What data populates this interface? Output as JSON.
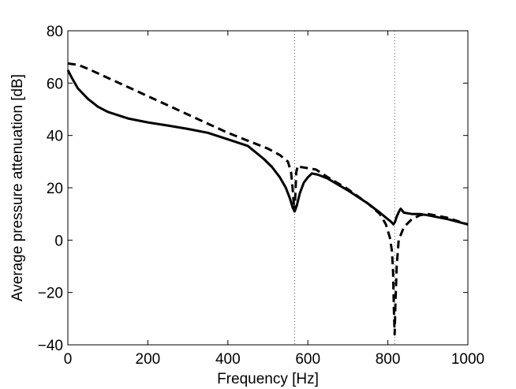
{
  "chart_data": {
    "type": "line",
    "title": "",
    "xlabel": "Frequency [Hz]",
    "ylabel": "Average pressure attenuation [dB]",
    "xlim": [
      0,
      1000
    ],
    "ylim": [
      -40,
      80
    ],
    "xticks": [
      0,
      200,
      400,
      600,
      800,
      1000
    ],
    "yticks": [
      -40,
      -20,
      0,
      20,
      40,
      60,
      80
    ],
    "xtick_labels": [
      "0",
      "200",
      "400",
      "600",
      "800",
      "1000"
    ],
    "ytick_labels": [
      "−40",
      "−20",
      "0",
      "20",
      "40",
      "60",
      "80"
    ],
    "grid": false,
    "legend": "none",
    "reference_lines_x": [
      567,
      817
    ],
    "series": [
      {
        "style": "solid",
        "color": "#000000",
        "x": [
          0,
          10,
          25,
          50,
          75,
          100,
          150,
          200,
          250,
          300,
          350,
          400,
          450,
          470,
          490,
          510,
          530,
          545,
          555,
          562,
          567,
          572,
          580,
          590,
          600,
          610,
          625,
          650,
          700,
          750,
          780,
          800,
          808,
          814,
          818,
          822,
          828,
          832,
          840,
          860,
          880,
          900,
          950,
          1000
        ],
        "y": [
          65,
          62,
          58,
          54,
          51,
          49,
          46.5,
          45,
          43.8,
          42.5,
          41,
          38.5,
          36,
          33.5,
          31,
          28,
          24,
          20,
          16,
          12.5,
          11,
          13,
          18,
          22,
          24,
          25.5,
          25,
          23.5,
          19,
          14,
          10.5,
          8,
          7,
          6,
          7,
          9,
          11,
          12,
          10.5,
          10,
          10,
          9.5,
          8,
          6
        ]
      },
      {
        "style": "dashed",
        "color": "#000000",
        "x": [
          0,
          25,
          50,
          100,
          150,
          200,
          250,
          300,
          350,
          400,
          450,
          500,
          530,
          550,
          558,
          563,
          566,
          568,
          571,
          575,
          580,
          600,
          620,
          650,
          700,
          750,
          780,
          795,
          805,
          810,
          813,
          815,
          817,
          819,
          822,
          827,
          840,
          860,
          880,
          900,
          950,
          1000
        ],
        "y": [
          67.5,
          67,
          65.5,
          62,
          58.5,
          55,
          51.5,
          48,
          44.5,
          41,
          38,
          35,
          32.5,
          30,
          26,
          18,
          11,
          15,
          26,
          28.5,
          28,
          27.5,
          27,
          24,
          19.5,
          14,
          10,
          6,
          1,
          -4,
          -12,
          -26,
          -36,
          -24,
          -10,
          0,
          5,
          8,
          9.5,
          10,
          8.5,
          6
        ]
      }
    ]
  }
}
